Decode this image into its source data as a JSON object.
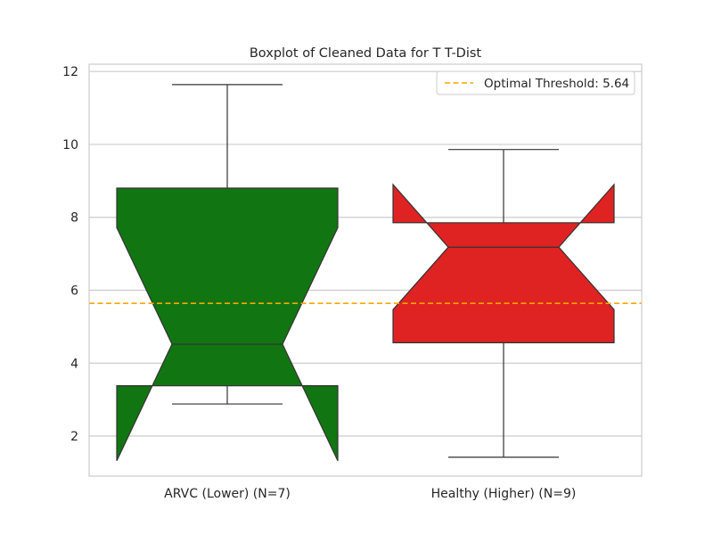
{
  "chart_data": {
    "type": "boxplot",
    "title": "Boxplot of Cleaned Data for T T-Dist",
    "xlabel": "",
    "ylabel": "",
    "ylim": [
      0.9,
      12.2
    ],
    "yticks": [
      2,
      4,
      6,
      8,
      10,
      12
    ],
    "grid": true,
    "notched": true,
    "categories": [
      "ARVC (Lower) (N=7)",
      "Healthy (Higher) (N=9)"
    ],
    "boxes": [
      {
        "category": "ARVC (Lower) (N=7)",
        "whisker_low": 2.88,
        "q1": 3.38,
        "median": 4.52,
        "q3": 8.8,
        "whisker_high": 11.64,
        "notch_low": 1.32,
        "notch_high": 7.72,
        "color": "#117611"
      },
      {
        "category": "Healthy (Higher) (N=9)",
        "whisker_low": 1.42,
        "q1": 4.56,
        "median": 7.18,
        "q3": 7.85,
        "whisker_high": 9.86,
        "notch_low": 5.47,
        "notch_high": 8.9,
        "color": "#df2222"
      }
    ],
    "threshold": {
      "label": "Optimal Threshold: 5.64",
      "value": 5.64,
      "color": "#ffa500"
    },
    "legend_position": "top-right"
  }
}
